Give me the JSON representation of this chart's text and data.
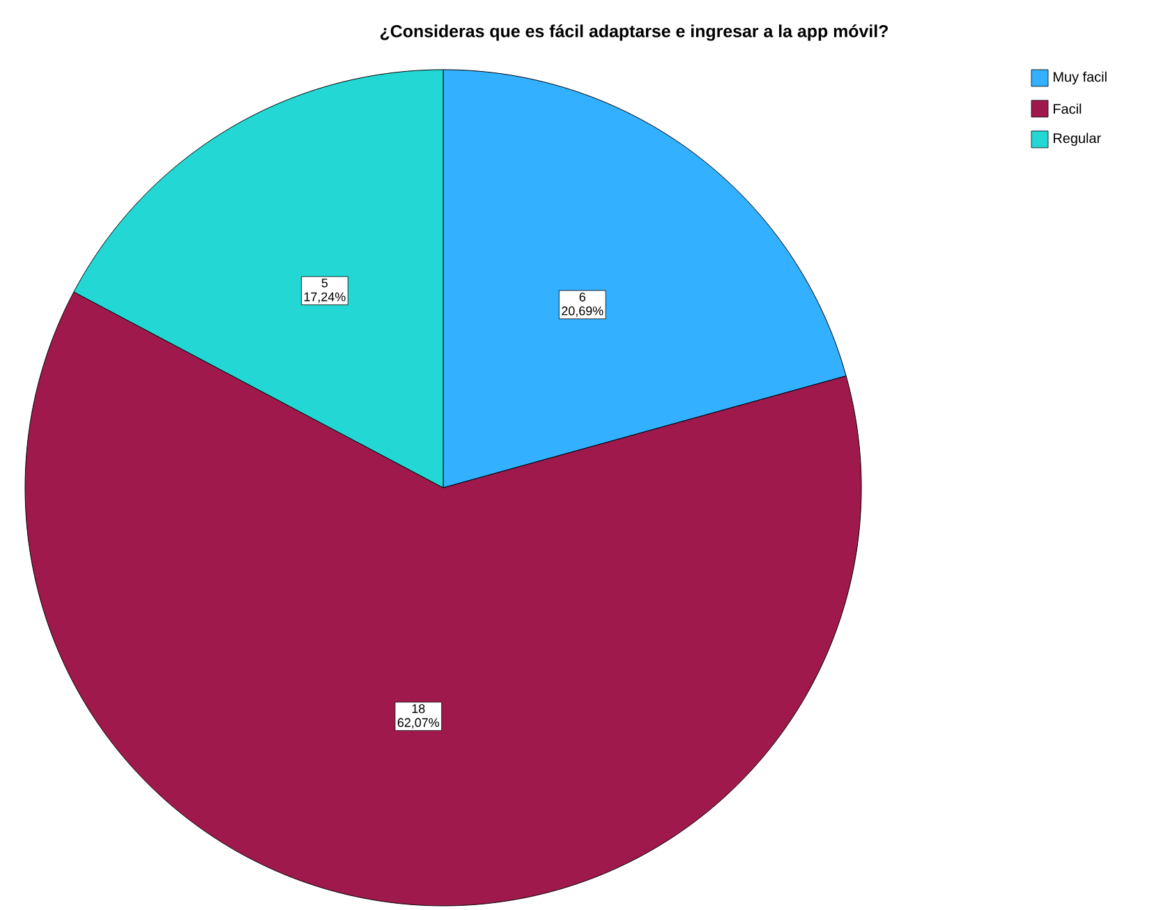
{
  "chart_data": {
    "type": "pie",
    "title": "¿Consideras que es fácil adaptarse e ingresar a la app móvil?",
    "categories": [
      "Muy facil",
      "Facil",
      "Regular"
    ],
    "values": [
      20.69,
      62.07,
      17.24
    ],
    "colors": [
      "#33b0ff",
      "#a0194d",
      "#23d8d4"
    ],
    "value_labels": [
      "20,69%",
      "62,07%",
      "17,24%"
    ],
    "annotations": [
      "6",
      "18",
      "5"
    ],
    "legend": "top right"
  }
}
